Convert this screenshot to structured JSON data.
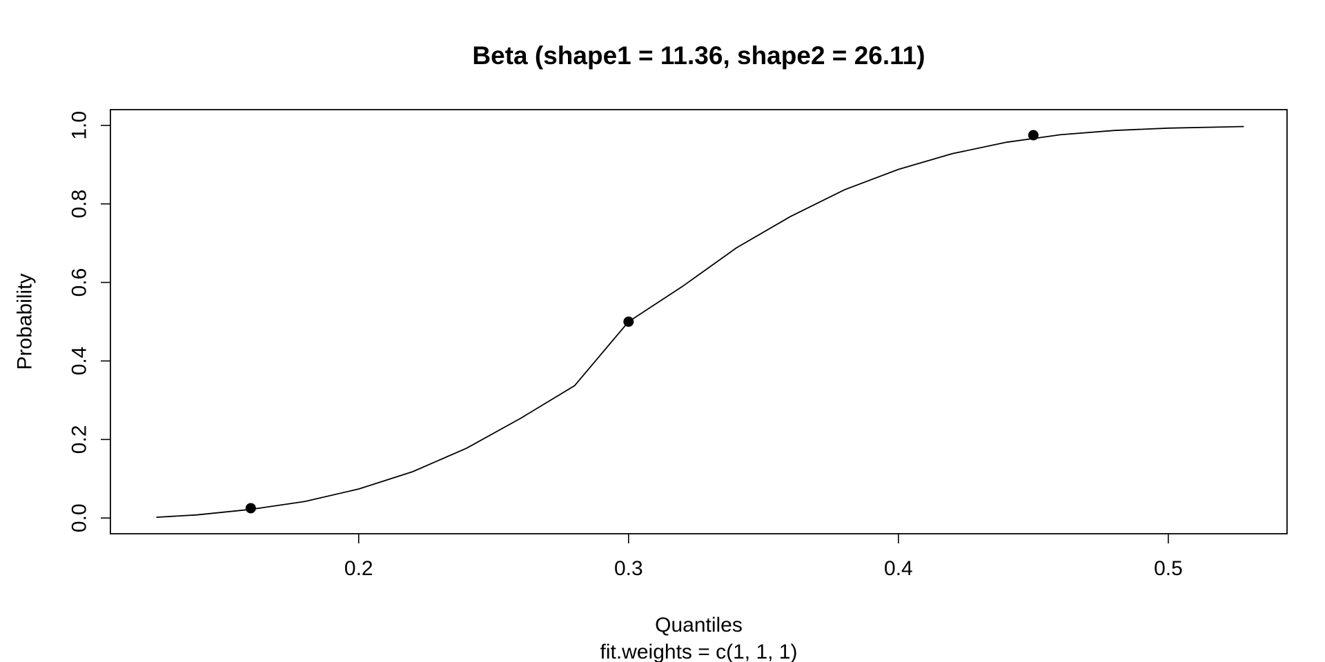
{
  "chart_data": {
    "type": "line",
    "title": "Beta (shape1 =  11.36, shape2 =  26.11)",
    "xlabel": "Quantiles",
    "subtitle": "fit.weights = c(1, 1, 1)",
    "ylabel": "Probability",
    "xlim": [
      0.108,
      0.544
    ],
    "ylim": [
      -0.04,
      1.04
    ],
    "x_ticks": [
      {
        "value": 0.2,
        "label": "0.2"
      },
      {
        "value": 0.3,
        "label": "0.3"
      },
      {
        "value": 0.4,
        "label": "0.4"
      },
      {
        "value": 0.5,
        "label": "0.5"
      }
    ],
    "y_ticks": [
      {
        "value": 0.0,
        "label": "0.0"
      },
      {
        "value": 0.2,
        "label": "0.2"
      },
      {
        "value": 0.4,
        "label": "0.4"
      },
      {
        "value": 0.6,
        "label": "0.6"
      },
      {
        "value": 0.8,
        "label": "0.8"
      },
      {
        "value": 1.0,
        "label": "1.0"
      }
    ],
    "series": [
      {
        "kind": "line",
        "x": [
          0.125,
          0.14,
          0.16,
          0.18,
          0.2,
          0.22,
          0.24,
          0.26,
          0.28,
          0.3,
          0.32,
          0.34,
          0.36,
          0.38,
          0.4,
          0.42,
          0.44,
          0.46,
          0.48,
          0.5,
          0.528
        ],
        "y": [
          0.002,
          0.008,
          0.022,
          0.042,
          0.074,
          0.118,
          0.178,
          0.254,
          0.337,
          0.5,
          0.59,
          0.688,
          0.768,
          0.836,
          0.888,
          0.928,
          0.957,
          0.976,
          0.987,
          0.993,
          0.997
        ]
      },
      {
        "kind": "points",
        "x": [
          0.16,
          0.3,
          0.45
        ],
        "y": [
          0.025,
          0.5,
          0.975
        ]
      }
    ],
    "grid": false,
    "legend": "none"
  }
}
